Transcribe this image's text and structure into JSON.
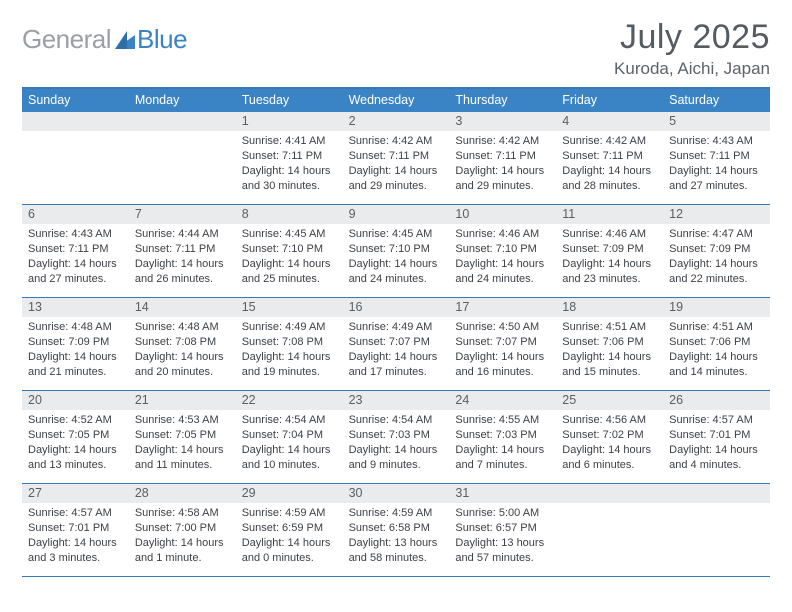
{
  "brand": {
    "gray": "General",
    "blue": "Blue"
  },
  "title": {
    "month": "July 2025",
    "location": "Kuroda, Aichi, Japan"
  },
  "colors": {
    "header_bar": "#3a84c6",
    "row_border": "#3a78b5",
    "daynum_bg": "#e9ebec",
    "text_dark": "#3d4146",
    "text_mid": "#5a5f64",
    "logo_gray": "#9aa0a6",
    "logo_blue": "#3a84c6"
  },
  "dow": [
    "Sunday",
    "Monday",
    "Tuesday",
    "Wednesday",
    "Thursday",
    "Friday",
    "Saturday"
  ],
  "weeks": [
    [
      {
        "n": "",
        "sr": "",
        "ss": "",
        "dl": ""
      },
      {
        "n": "",
        "sr": "",
        "ss": "",
        "dl": ""
      },
      {
        "n": "1",
        "sr": "Sunrise: 4:41 AM",
        "ss": "Sunset: 7:11 PM",
        "dl": "Daylight: 14 hours and 30 minutes."
      },
      {
        "n": "2",
        "sr": "Sunrise: 4:42 AM",
        "ss": "Sunset: 7:11 PM",
        "dl": "Daylight: 14 hours and 29 minutes."
      },
      {
        "n": "3",
        "sr": "Sunrise: 4:42 AM",
        "ss": "Sunset: 7:11 PM",
        "dl": "Daylight: 14 hours and 29 minutes."
      },
      {
        "n": "4",
        "sr": "Sunrise: 4:42 AM",
        "ss": "Sunset: 7:11 PM",
        "dl": "Daylight: 14 hours and 28 minutes."
      },
      {
        "n": "5",
        "sr": "Sunrise: 4:43 AM",
        "ss": "Sunset: 7:11 PM",
        "dl": "Daylight: 14 hours and 27 minutes."
      }
    ],
    [
      {
        "n": "6",
        "sr": "Sunrise: 4:43 AM",
        "ss": "Sunset: 7:11 PM",
        "dl": "Daylight: 14 hours and 27 minutes."
      },
      {
        "n": "7",
        "sr": "Sunrise: 4:44 AM",
        "ss": "Sunset: 7:11 PM",
        "dl": "Daylight: 14 hours and 26 minutes."
      },
      {
        "n": "8",
        "sr": "Sunrise: 4:45 AM",
        "ss": "Sunset: 7:10 PM",
        "dl": "Daylight: 14 hours and 25 minutes."
      },
      {
        "n": "9",
        "sr": "Sunrise: 4:45 AM",
        "ss": "Sunset: 7:10 PM",
        "dl": "Daylight: 14 hours and 24 minutes."
      },
      {
        "n": "10",
        "sr": "Sunrise: 4:46 AM",
        "ss": "Sunset: 7:10 PM",
        "dl": "Daylight: 14 hours and 24 minutes."
      },
      {
        "n": "11",
        "sr": "Sunrise: 4:46 AM",
        "ss": "Sunset: 7:09 PM",
        "dl": "Daylight: 14 hours and 23 minutes."
      },
      {
        "n": "12",
        "sr": "Sunrise: 4:47 AM",
        "ss": "Sunset: 7:09 PM",
        "dl": "Daylight: 14 hours and 22 minutes."
      }
    ],
    [
      {
        "n": "13",
        "sr": "Sunrise: 4:48 AM",
        "ss": "Sunset: 7:09 PM",
        "dl": "Daylight: 14 hours and 21 minutes."
      },
      {
        "n": "14",
        "sr": "Sunrise: 4:48 AM",
        "ss": "Sunset: 7:08 PM",
        "dl": "Daylight: 14 hours and 20 minutes."
      },
      {
        "n": "15",
        "sr": "Sunrise: 4:49 AM",
        "ss": "Sunset: 7:08 PM",
        "dl": "Daylight: 14 hours and 19 minutes."
      },
      {
        "n": "16",
        "sr": "Sunrise: 4:49 AM",
        "ss": "Sunset: 7:07 PM",
        "dl": "Daylight: 14 hours and 17 minutes."
      },
      {
        "n": "17",
        "sr": "Sunrise: 4:50 AM",
        "ss": "Sunset: 7:07 PM",
        "dl": "Daylight: 14 hours and 16 minutes."
      },
      {
        "n": "18",
        "sr": "Sunrise: 4:51 AM",
        "ss": "Sunset: 7:06 PM",
        "dl": "Daylight: 14 hours and 15 minutes."
      },
      {
        "n": "19",
        "sr": "Sunrise: 4:51 AM",
        "ss": "Sunset: 7:06 PM",
        "dl": "Daylight: 14 hours and 14 minutes."
      }
    ],
    [
      {
        "n": "20",
        "sr": "Sunrise: 4:52 AM",
        "ss": "Sunset: 7:05 PM",
        "dl": "Daylight: 14 hours and 13 minutes."
      },
      {
        "n": "21",
        "sr": "Sunrise: 4:53 AM",
        "ss": "Sunset: 7:05 PM",
        "dl": "Daylight: 14 hours and 11 minutes."
      },
      {
        "n": "22",
        "sr": "Sunrise: 4:54 AM",
        "ss": "Sunset: 7:04 PM",
        "dl": "Daylight: 14 hours and 10 minutes."
      },
      {
        "n": "23",
        "sr": "Sunrise: 4:54 AM",
        "ss": "Sunset: 7:03 PM",
        "dl": "Daylight: 14 hours and 9 minutes."
      },
      {
        "n": "24",
        "sr": "Sunrise: 4:55 AM",
        "ss": "Sunset: 7:03 PM",
        "dl": "Daylight: 14 hours and 7 minutes."
      },
      {
        "n": "25",
        "sr": "Sunrise: 4:56 AM",
        "ss": "Sunset: 7:02 PM",
        "dl": "Daylight: 14 hours and 6 minutes."
      },
      {
        "n": "26",
        "sr": "Sunrise: 4:57 AM",
        "ss": "Sunset: 7:01 PM",
        "dl": "Daylight: 14 hours and 4 minutes."
      }
    ],
    [
      {
        "n": "27",
        "sr": "Sunrise: 4:57 AM",
        "ss": "Sunset: 7:01 PM",
        "dl": "Daylight: 14 hours and 3 minutes."
      },
      {
        "n": "28",
        "sr": "Sunrise: 4:58 AM",
        "ss": "Sunset: 7:00 PM",
        "dl": "Daylight: 14 hours and 1 minute."
      },
      {
        "n": "29",
        "sr": "Sunrise: 4:59 AM",
        "ss": "Sunset: 6:59 PM",
        "dl": "Daylight: 14 hours and 0 minutes."
      },
      {
        "n": "30",
        "sr": "Sunrise: 4:59 AM",
        "ss": "Sunset: 6:58 PM",
        "dl": "Daylight: 13 hours and 58 minutes."
      },
      {
        "n": "31",
        "sr": "Sunrise: 5:00 AM",
        "ss": "Sunset: 6:57 PM",
        "dl": "Daylight: 13 hours and 57 minutes."
      },
      {
        "n": "",
        "sr": "",
        "ss": "",
        "dl": ""
      },
      {
        "n": "",
        "sr": "",
        "ss": "",
        "dl": ""
      }
    ]
  ]
}
